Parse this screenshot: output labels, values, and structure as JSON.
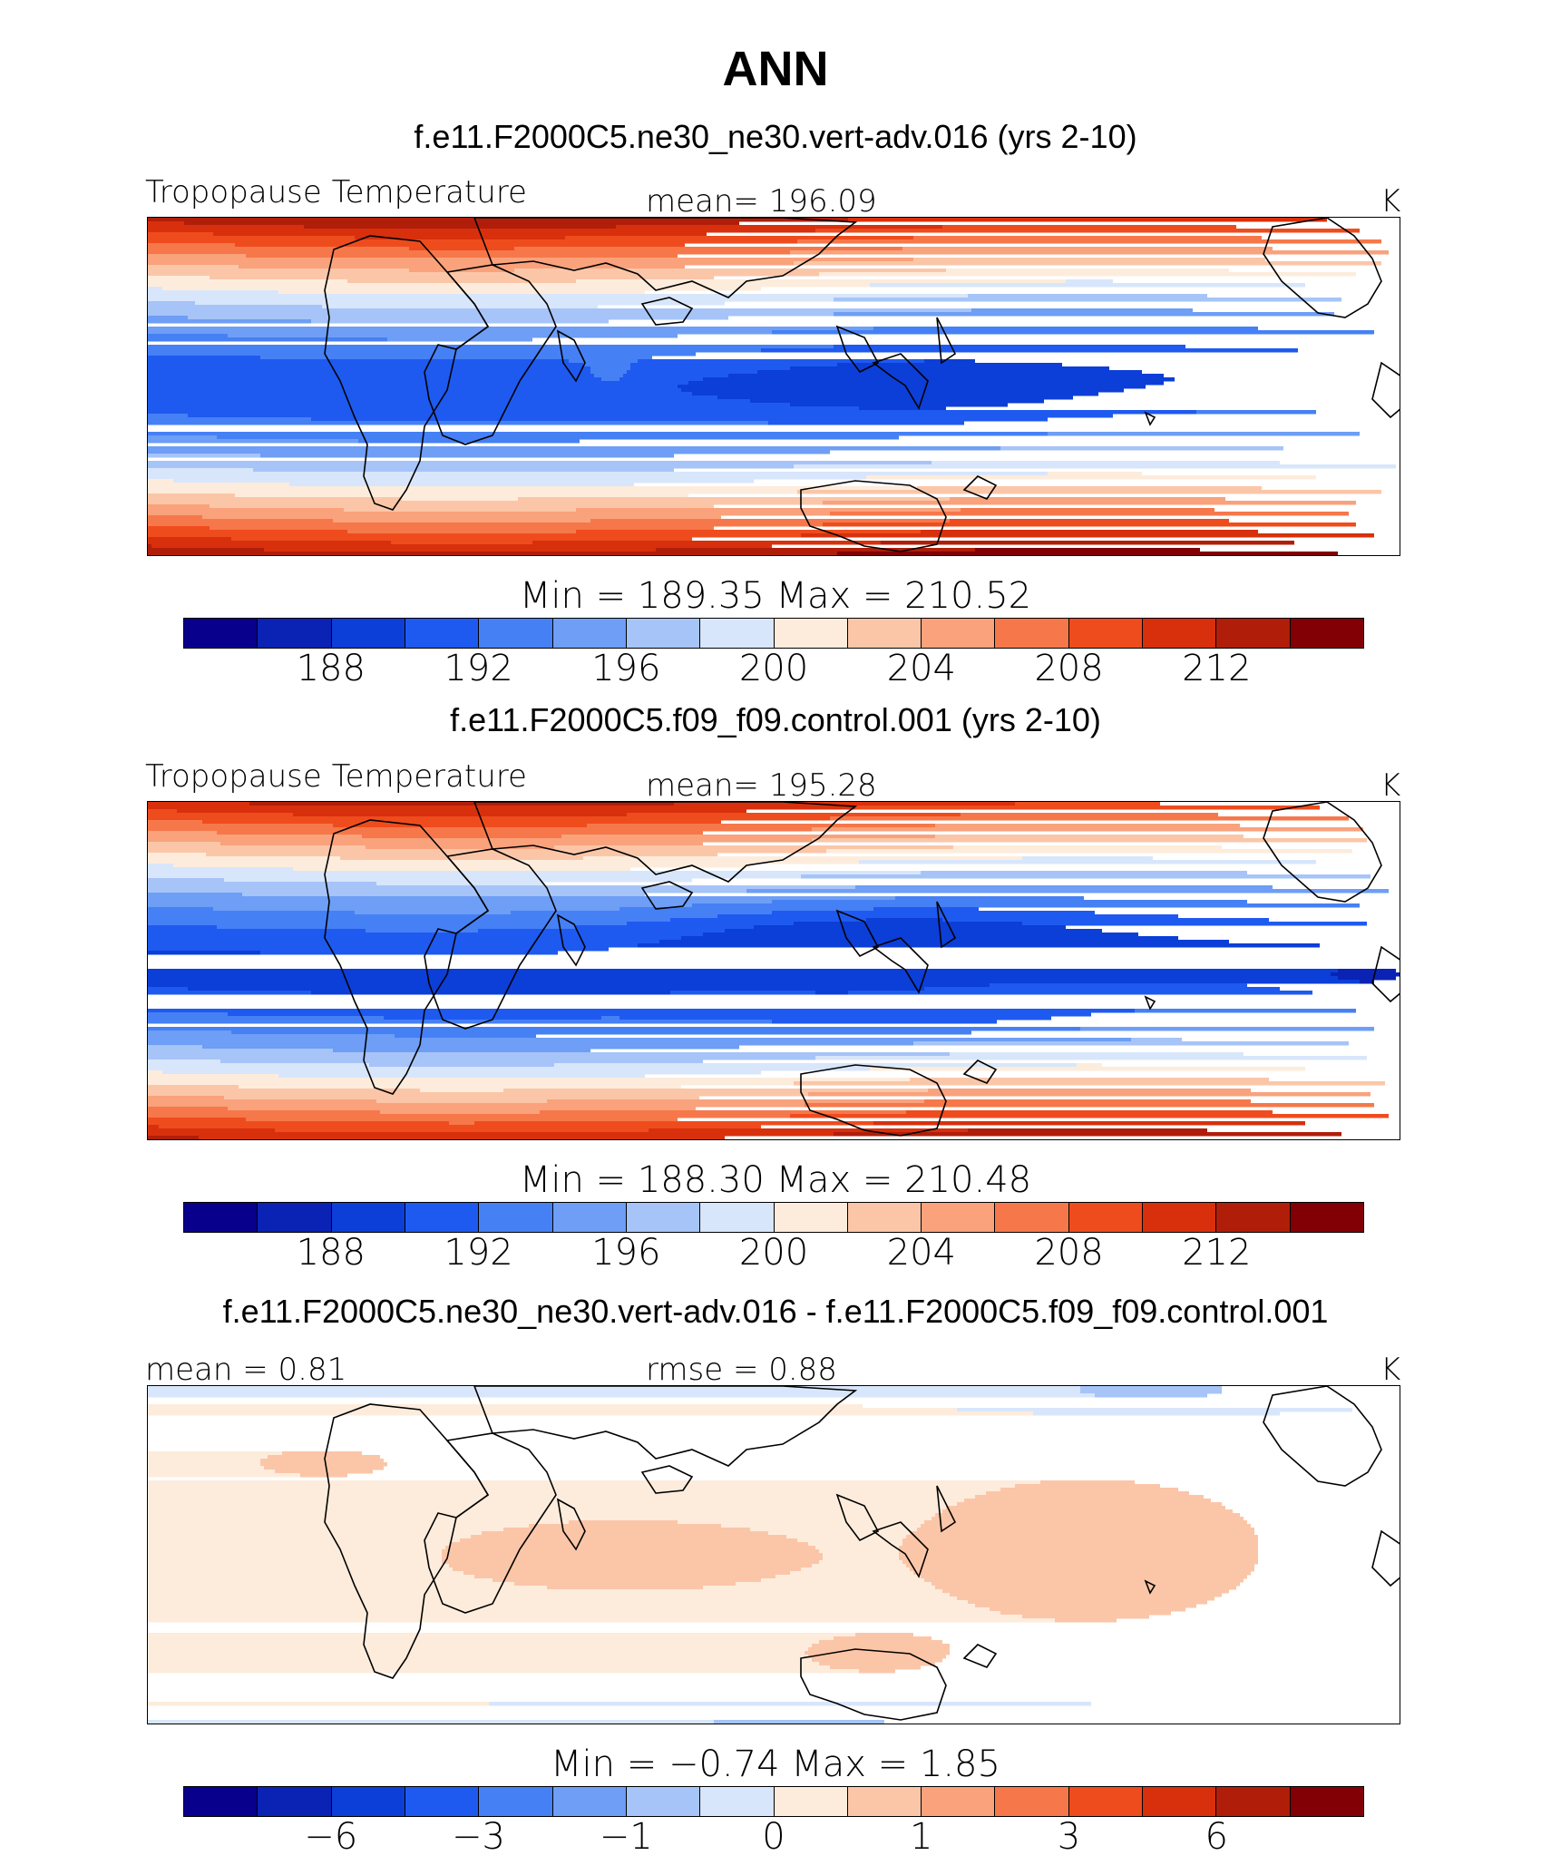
{
  "title": "ANN",
  "palette": [
    "#08008c",
    "#0a23b4",
    "#0c3ed8",
    "#1e5af0",
    "#4680f5",
    "#6e9ef5",
    "#a6c4f8",
    "#d8e6fb",
    "#fdecdc",
    "#fbc6a8",
    "#f9a27c",
    "#f6784a",
    "#ef4c1e",
    "#d8300c",
    "#b01e0a",
    "#820005"
  ],
  "land_color": "#000000",
  "chart_data": [
    {
      "type": "heatmap",
      "case_label": "f.e11.F2000C5.ne30_ne30.vert-adv.016 (yrs 2-10)",
      "left_label": "Tropopause Temperature",
      "center_label": "mean=  196.09",
      "units": "K",
      "min_max": "Min  =  189.35  Max  =  210.52",
      "colorbar_ticks": [
        "188",
        "192",
        "196",
        "200",
        "204",
        "208",
        "212"
      ],
      "field": "abs_a"
    },
    {
      "type": "heatmap",
      "case_label": "f.e11.F2000C5.f09_f09.control.001 (yrs 2-10)",
      "left_label": "Tropopause Temperature",
      "center_label": "mean=  195.28",
      "units": "K",
      "min_max": "Min  =  188.30  Max  =  210.48",
      "colorbar_ticks": [
        "188",
        "192",
        "196",
        "200",
        "204",
        "208",
        "212"
      ],
      "field": "abs_b"
    },
    {
      "type": "heatmap",
      "case_label": "f.e11.F2000C5.ne30_ne30.vert-adv.016 - f.e11.F2000C5.f09_f09.control.001",
      "left_label": "mean  =    0.81",
      "center_label": "rmse  =    0.88",
      "units": "K",
      "min_max": "Min  =   −0.74  Max  =     1.85",
      "colorbar_ticks": [
        "−6",
        "−3",
        "−1",
        "0",
        "1",
        "3",
        "6"
      ],
      "field": "diff"
    }
  ]
}
